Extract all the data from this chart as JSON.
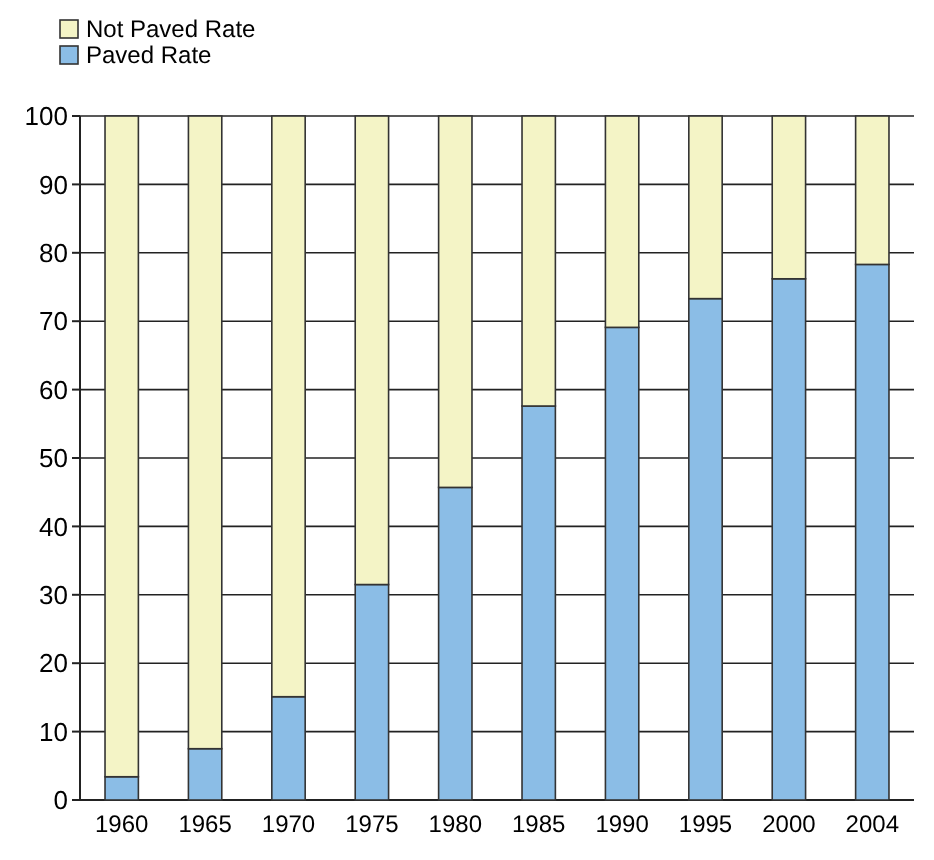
{
  "chart_data": {
    "type": "bar",
    "stacked": true,
    "categories": [
      "1960",
      "1965",
      "1970",
      "1975",
      "1980",
      "1985",
      "1990",
      "1995",
      "2000",
      "2004"
    ],
    "series": [
      {
        "name": "Paved Rate",
        "color": "#8bbde6",
        "values": [
          3.4,
          7.5,
          15.1,
          31.5,
          45.7,
          57.6,
          69.1,
          73.3,
          76.2,
          78.3
        ]
      },
      {
        "name": "Not Paved Rate",
        "color": "#f4f4c6",
        "values": [
          96.6,
          92.5,
          84.9,
          68.5,
          54.3,
          42.4,
          30.9,
          26.7,
          23.8,
          21.7
        ]
      }
    ],
    "ylim": [
      0,
      100
    ],
    "yticks": [
      0,
      10,
      20,
      30,
      40,
      50,
      60,
      70,
      80,
      90,
      100
    ],
    "grid": "y",
    "legend": "top left"
  }
}
